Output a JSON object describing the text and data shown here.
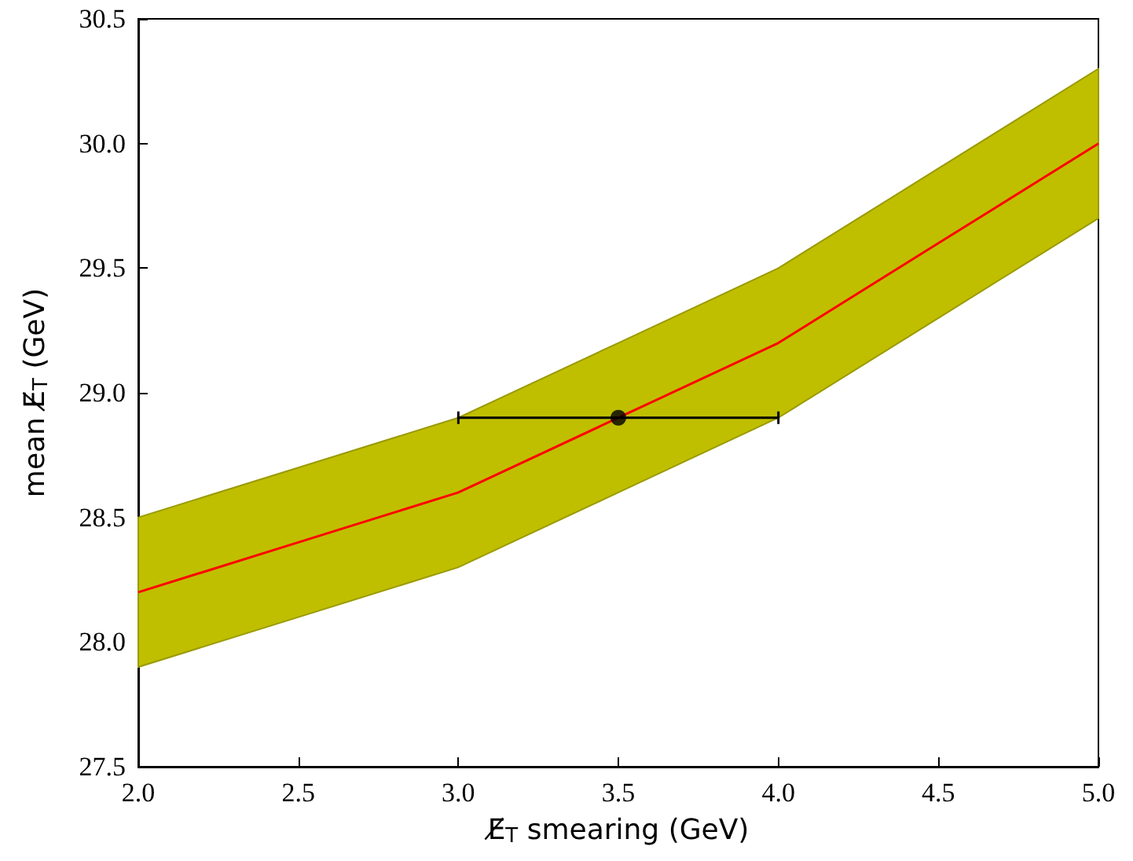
{
  "chart_data": {
    "type": "line",
    "xlabel": "E̸$_{T}$ smearing (GeV)",
    "ylabel": "mean E̸$_{T}$ (GeV)",
    "xlim": [
      2,
      5.0
    ],
    "ylim": [
      27.5,
      30.5
    ],
    "xticks": [
      {
        "value": 2,
        "label": "2.0"
      },
      {
        "value": 2.5,
        "label": "2.5"
      },
      {
        "value": 3,
        "label": "3.0"
      },
      {
        "value": 3.5,
        "label": "3.5"
      },
      {
        "value": 4,
        "label": "4.0"
      },
      {
        "value": 4.5,
        "label": "4.5"
      },
      {
        "value": 5,
        "label": "5.0"
      }
    ],
    "yticks": [
      {
        "value": 27.5,
        "label": "27.5"
      },
      {
        "value": 28,
        "label": "28.0"
      },
      {
        "value": 28.5,
        "label": "28.5"
      },
      {
        "value": 29,
        "label": "29.0"
      },
      {
        "value": 29.5,
        "label": "29.5"
      },
      {
        "value": 30,
        "label": "30.0"
      },
      {
        "value": 30.5,
        "label": "30.5"
      }
    ],
    "series": [
      {
        "color": "#ff0000",
        "x": [
          2,
          2.5,
          3,
          3.5,
          4,
          4.5,
          5
        ],
        "values": [
          28.2,
          28.4,
          28.6,
          28.9,
          29.2,
          29.6,
          30.0
        ],
        "lower": [
          27.9,
          28.1,
          28.3,
          28.6,
          28.9,
          29.3,
          29.7
        ],
        "upper": [
          28.5,
          28.7,
          28.9,
          29.2,
          29.5,
          29.9,
          30.3
        ],
        "marker": "none"
      },
      {
        "type": "scatter",
        "color": "#000000",
        "x": [
          3.5
        ],
        "values": [
          28.9
        ],
        "xerrors": [
          [
            3,
            4
          ]
        ],
        "marker": "circle"
      }
    ]
  }
}
